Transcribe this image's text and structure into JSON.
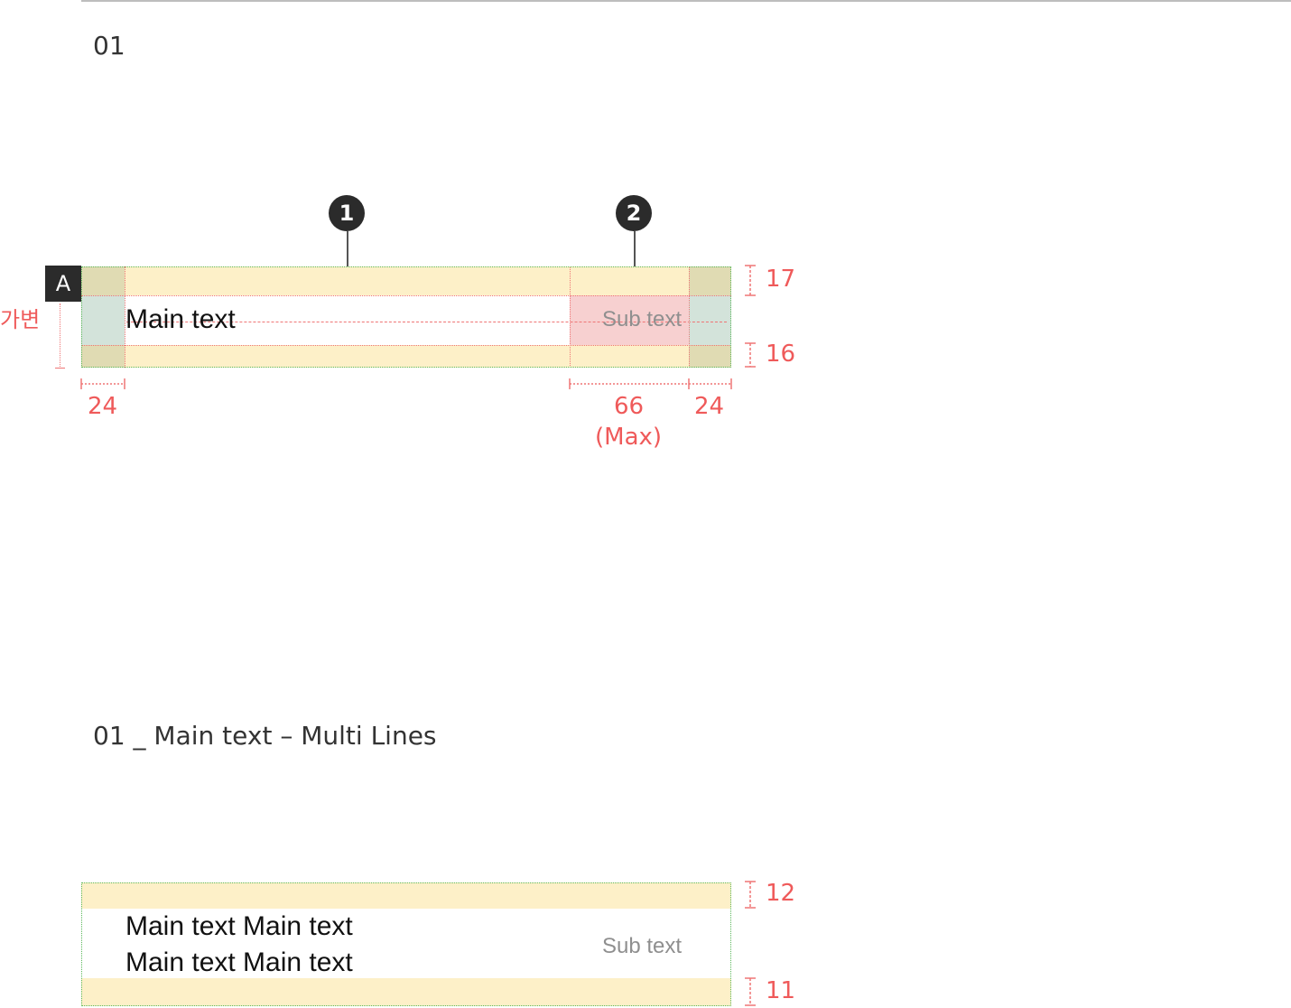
{
  "section1": {
    "title": "01"
  },
  "section2": {
    "title": "01 _ Main text – Multi Lines"
  },
  "callouts": [
    "1",
    "2"
  ],
  "row1": {
    "tag": "A",
    "height_label": "가변",
    "main_text": "Main text",
    "sub_text": "Sub text",
    "spacing": {
      "top": "17",
      "bottom": "16",
      "left": "24",
      "sub_width": "66",
      "sub_width_note": "(Max)",
      "right": "24"
    }
  },
  "row2": {
    "main_text_line1": "Main text Main text",
    "main_text_line2": "Main text Main text",
    "sub_text": "Sub text",
    "spacing": {
      "top": "12",
      "bottom": "11"
    }
  },
  "colors": {
    "padding": "#fdf0c8",
    "side_padding": "#d3e3da",
    "corner": "#e0dbb3",
    "sub_text_area": "#f7d0d0",
    "spec": "#ef5a5a",
    "outline": "#5cb85c"
  }
}
